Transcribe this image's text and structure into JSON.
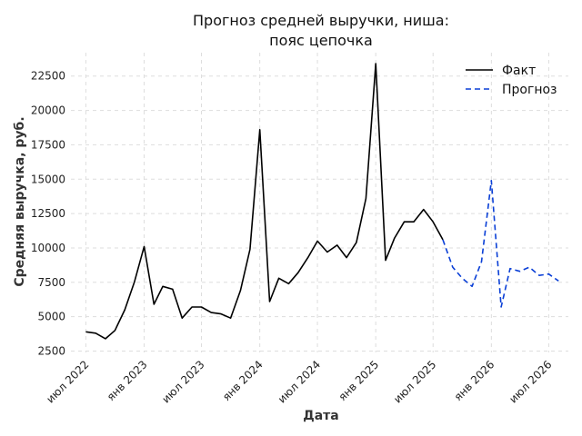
{
  "chart_data": {
    "type": "line",
    "title_lines": [
      "Прогноз средней выручки, ниша:",
      "пояс цепочка"
    ],
    "xlabel": "Дата",
    "ylabel": "Средняя выручка, руб.",
    "grid": true,
    "legend_position": "top-right",
    "xlim": [
      "2022-05-15",
      "2026-09-01"
    ],
    "ylim": [
      2400,
      24200
    ],
    "yticks": [
      2500,
      5000,
      7500,
      10000,
      12500,
      15000,
      17500,
      20000,
      22500
    ],
    "xticks": [
      {
        "date": "2022-07-01",
        "label": "июл 2022"
      },
      {
        "date": "2023-01-01",
        "label": "янв 2023"
      },
      {
        "date": "2023-07-01",
        "label": "июл 2023"
      },
      {
        "date": "2024-01-01",
        "label": "янв 2024"
      },
      {
        "date": "2024-07-01",
        "label": "июл 2024"
      },
      {
        "date": "2025-01-01",
        "label": "янв 2025"
      },
      {
        "date": "2025-07-01",
        "label": "июл 2025"
      },
      {
        "date": "2026-01-01",
        "label": "янв 2026"
      },
      {
        "date": "2026-07-01",
        "label": "июл 2026"
      }
    ],
    "series": [
      {
        "name": "Факт",
        "color": "#000000",
        "style": "solid",
        "x": [
          "2022-07-01",
          "2022-08-01",
          "2022-09-01",
          "2022-10-01",
          "2022-11-01",
          "2022-12-01",
          "2023-01-01",
          "2023-02-01",
          "2023-03-01",
          "2023-04-01",
          "2023-05-01",
          "2023-06-01",
          "2023-07-01",
          "2023-08-01",
          "2023-09-01",
          "2023-10-01",
          "2023-11-01",
          "2023-12-01",
          "2024-01-01",
          "2024-02-01",
          "2024-03-01",
          "2024-04-01",
          "2024-05-01",
          "2024-06-01",
          "2024-07-01",
          "2024-08-01",
          "2024-09-01",
          "2024-10-01",
          "2024-11-01",
          "2024-12-01",
          "2025-01-01",
          "2025-02-01",
          "2025-03-01",
          "2025-04-01",
          "2025-05-01",
          "2025-06-01",
          "2025-07-01",
          "2025-08-01"
        ],
        "values": [
          3900,
          3800,
          3400,
          4000,
          5500,
          7500,
          10100,
          5900,
          7200,
          7000,
          4900,
          5700,
          5700,
          5300,
          5200,
          4900,
          6900,
          9900,
          18600,
          6100,
          7800,
          7400,
          8200,
          9300,
          10500,
          9700,
          10200,
          9300,
          10400,
          13600,
          23400,
          9100,
          10700,
          11900,
          11900,
          12800,
          11900,
          10600
        ]
      },
      {
        "name": "Прогноз",
        "color": "#0a3fd6",
        "style": "dashed",
        "x": [
          "2025-08-01",
          "2025-09-01",
          "2025-10-01",
          "2025-11-01",
          "2025-12-01",
          "2026-01-01",
          "2026-02-01",
          "2026-03-01",
          "2026-04-01",
          "2026-05-01",
          "2026-06-01",
          "2026-07-01",
          "2026-08-01"
        ],
        "values": [
          10600,
          8600,
          7800,
          7200,
          9000,
          14900,
          5700,
          8500,
          8300,
          8600,
          8000,
          8100,
          7600
        ]
      }
    ]
  }
}
